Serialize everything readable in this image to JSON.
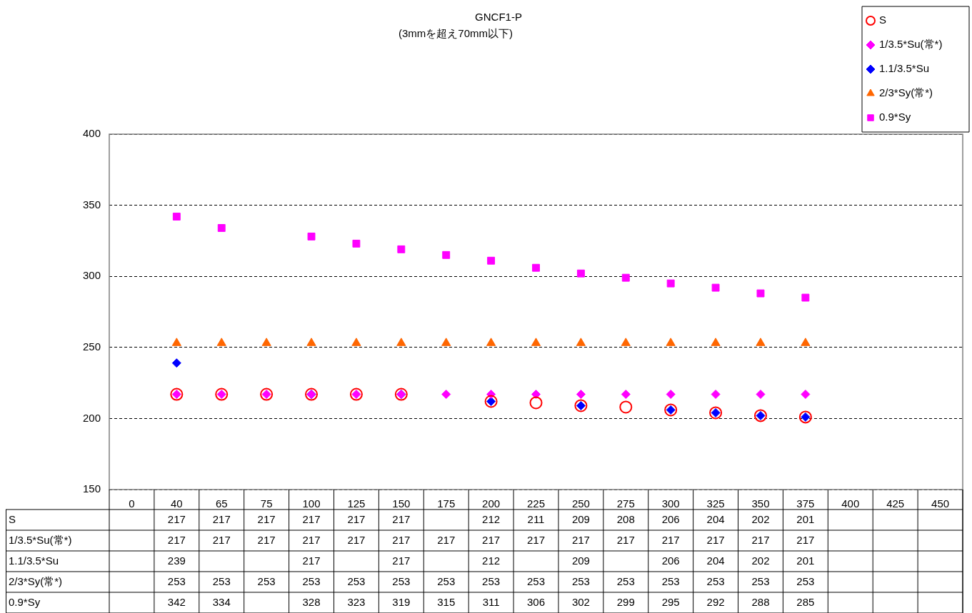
{
  "chart_data": {
    "type": "scatter",
    "title": "GNCF1-P",
    "subtitle": "(3mmを超え70mm以下)",
    "categories": [
      "0",
      "40",
      "65",
      "75",
      "100",
      "125",
      "150",
      "175",
      "200",
      "225",
      "250",
      "275",
      "300",
      "325",
      "350",
      "375",
      "400",
      "425",
      "450"
    ],
    "series": [
      {
        "name": "S",
        "color": "#ff0000",
        "marker": "circle",
        "values": [
          null,
          217,
          217,
          217,
          217,
          217,
          217,
          null,
          212,
          211,
          209,
          208,
          206,
          204,
          202,
          201,
          null,
          null,
          null
        ]
      },
      {
        "name": "1/3.5*Su(常*)",
        "color": "#ff00ff",
        "marker": "diamond",
        "values": [
          null,
          217,
          217,
          217,
          217,
          217,
          217,
          217,
          217,
          217,
          217,
          217,
          217,
          217,
          217,
          217,
          null,
          null,
          null
        ]
      },
      {
        "name": "1.1/3.5*Su",
        "color": "#0000ff",
        "marker": "diamond",
        "values": [
          null,
          239,
          null,
          null,
          217,
          null,
          217,
          null,
          212,
          null,
          209,
          null,
          206,
          204,
          202,
          201,
          null,
          null,
          null
        ]
      },
      {
        "name": "2/3*Sy(常*)",
        "color": "#ff6600",
        "marker": "triangle",
        "values": [
          null,
          253,
          253,
          253,
          253,
          253,
          253,
          253,
          253,
          253,
          253,
          253,
          253,
          253,
          253,
          253,
          null,
          null,
          null
        ]
      },
      {
        "name": "0.9*Sy",
        "color": "#ff00ff",
        "marker": "square",
        "values": [
          null,
          342,
          334,
          null,
          328,
          323,
          319,
          315,
          311,
          306,
          302,
          299,
          295,
          292,
          288,
          285,
          null,
          null,
          null
        ]
      }
    ],
    "ylim": [
      150,
      400
    ],
    "yticks": [
      150,
      200,
      250,
      300,
      350,
      400
    ],
    "grid": "y",
    "legend": "top right",
    "data_labels": true
  }
}
